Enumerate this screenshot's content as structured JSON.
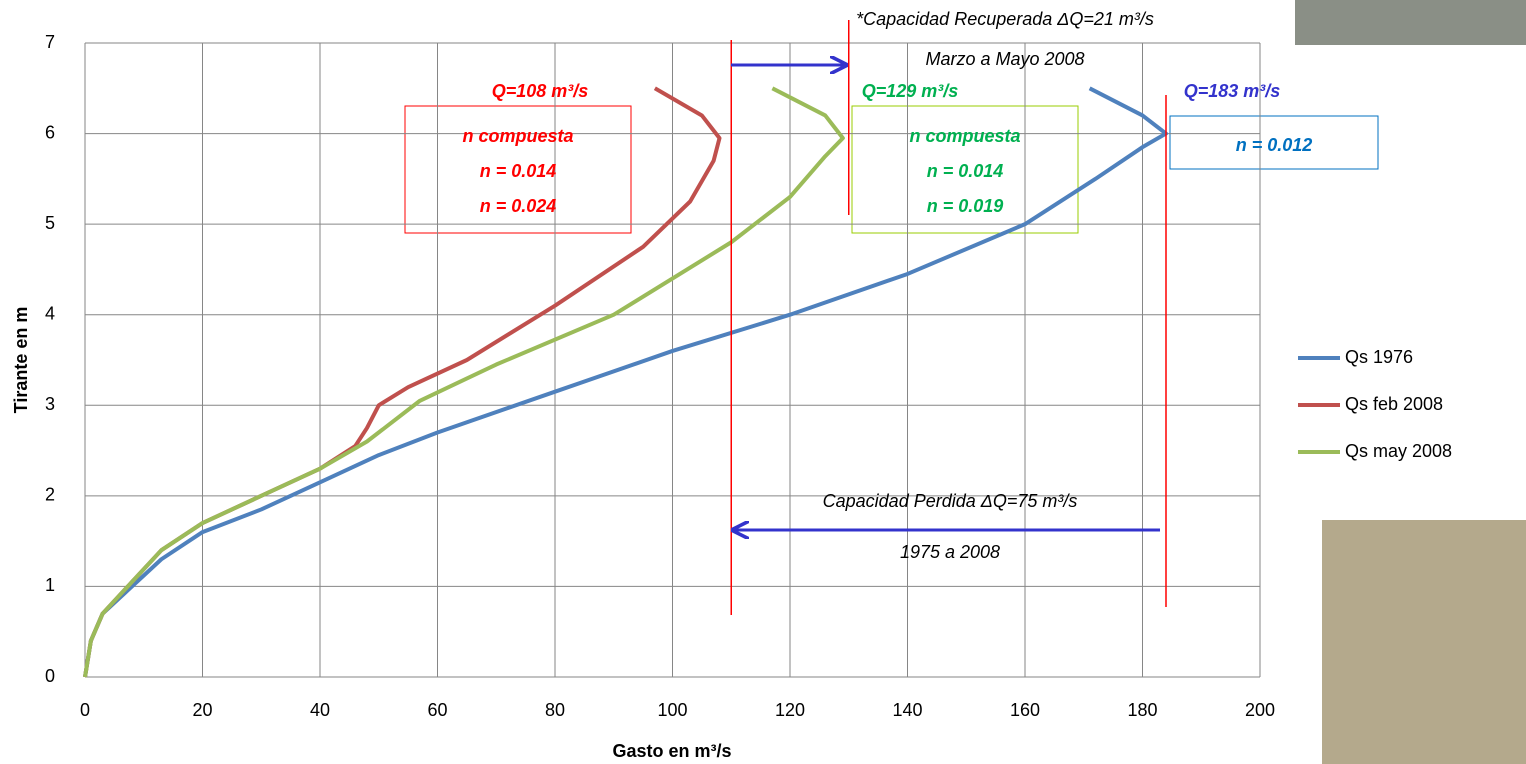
{
  "chart_data": {
    "type": "line",
    "xlabel": "Gasto en m³/s",
    "ylabel": "Tirante en m",
    "xlim": [
      0,
      200
    ],
    "xticks": [
      0,
      20,
      40,
      60,
      80,
      100,
      120,
      140,
      160,
      180,
      200
    ],
    "ylim": [
      0,
      7
    ],
    "yticks": [
      0,
      1,
      2,
      3,
      4,
      5,
      6,
      7
    ],
    "grid": true,
    "series": [
      {
        "name": "Qs 1976",
        "color": "#4f81bd",
        "x": [
          0,
          1,
          3,
          8,
          13,
          20,
          30,
          40,
          50,
          60,
          80,
          100,
          120,
          140,
          160,
          172,
          180,
          184,
          180,
          171
        ],
        "values": [
          0,
          0.4,
          0.7,
          1.0,
          1.3,
          1.6,
          1.85,
          2.15,
          2.45,
          2.7,
          3.15,
          3.6,
          4.0,
          4.45,
          5.0,
          5.5,
          5.85,
          6.0,
          6.2,
          6.5
        ]
      },
      {
        "name": "Qs feb 2008",
        "color": "#c0504d",
        "x": [
          0,
          1,
          3,
          8,
          13,
          20,
          30,
          40,
          46,
          48,
          50,
          55,
          65,
          80,
          95,
          103,
          107,
          108,
          105,
          97
        ],
        "values": [
          0,
          0.4,
          0.7,
          1.05,
          1.4,
          1.7,
          2.0,
          2.3,
          2.55,
          2.75,
          3.0,
          3.2,
          3.5,
          4.1,
          4.75,
          5.25,
          5.7,
          5.95,
          6.2,
          6.5
        ]
      },
      {
        "name": "Qs may 2008",
        "color": "#9bbb59",
        "x": [
          0,
          1,
          3,
          8,
          13,
          20,
          30,
          40,
          48,
          57,
          70,
          90,
          110,
          120,
          126,
          129,
          126,
          117
        ],
        "values": [
          0,
          0.4,
          0.7,
          1.05,
          1.4,
          1.7,
          2.0,
          2.3,
          2.6,
          3.05,
          3.45,
          4.0,
          4.8,
          5.3,
          5.75,
          5.95,
          6.2,
          6.5
        ]
      }
    ],
    "vlines": [
      110,
      184,
      130
    ],
    "annotations": [
      "*Capacidad Recuperada  ΔQ=21 m³/s",
      "Marzo a Mayo 2008",
      "Q=108 m³/s",
      "Q=129 m³/s",
      "Q=183 m³/s",
      "n compuesta",
      "n = 0.014",
      "n = 0.024",
      "n compuesta",
      "n = 0.014",
      "n = 0.019",
      "n = 0.012",
      "Capacidad Perdida  ΔQ=75 m³/s",
      "1975 a 2008"
    ]
  }
}
